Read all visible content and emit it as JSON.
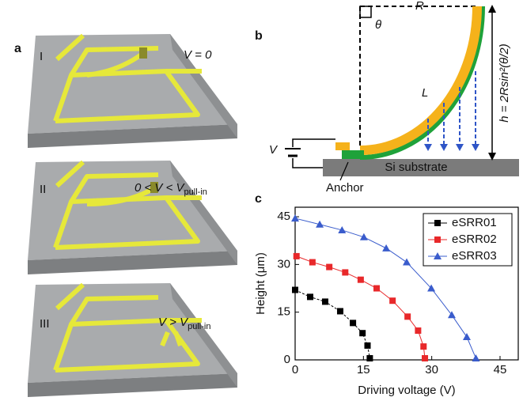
{
  "panel_a": {
    "label": "a",
    "states": [
      {
        "numeral": "I",
        "condition": {
          "text": "V = 0"
        }
      },
      {
        "numeral": "II",
        "condition": {
          "text": "0 < V < V",
          "sub": "pull-in"
        }
      },
      {
        "numeral": "III",
        "condition": {
          "text": "V > V",
          "sub": "pull-in"
        }
      }
    ]
  },
  "panel_b": {
    "label": "b",
    "radius": "R",
    "angle": "θ",
    "length": "L",
    "height": "h = 2Rsin²(θ/2)",
    "voltage": "V",
    "substrate": "Si substrate",
    "anchor": "Anchor"
  },
  "chart_data": {
    "type": "line",
    "label": "c",
    "x_label": "Driving voltage (V)",
    "y_label": "Height (μm)",
    "xlim": [
      0,
      49
    ],
    "ylim": [
      0,
      48
    ],
    "xticks": [
      0,
      15,
      30,
      45
    ],
    "yticks": [
      0,
      15,
      30,
      45
    ],
    "legend": "upper right",
    "series": [
      {
        "name": "eSRR01",
        "color": "#000000",
        "marker": "square",
        "x": [
          0,
          3.3,
          6.6,
          9.9,
          12.7,
          14.8,
          15.9,
          16.4
        ],
        "values": [
          22,
          19.8,
          18.3,
          15.3,
          11.6,
          8.4,
          4.5,
          0.5
        ]
      },
      {
        "name": "eSRR02",
        "color": "#e8282a",
        "marker": "square",
        "x": [
          0.3,
          3.8,
          7.5,
          11,
          14.4,
          17.9,
          21.4,
          24.7,
          27,
          28.2,
          28.5
        ],
        "values": [
          32.6,
          30.7,
          29.2,
          27.5,
          25.2,
          22.5,
          18.6,
          13.6,
          9.2,
          4.2,
          0.5
        ]
      },
      {
        "name": "eSRR03",
        "color": "#3a5ccc",
        "marker": "triangle",
        "x": [
          0,
          5.4,
          10.3,
          15.1,
          20,
          24.5,
          29.9,
          34.4,
          37.7,
          39.7
        ],
        "values": [
          44.5,
          42.6,
          40.8,
          38.6,
          35.1,
          30.7,
          22.5,
          14.1,
          7.2,
          0.5
        ]
      }
    ]
  }
}
